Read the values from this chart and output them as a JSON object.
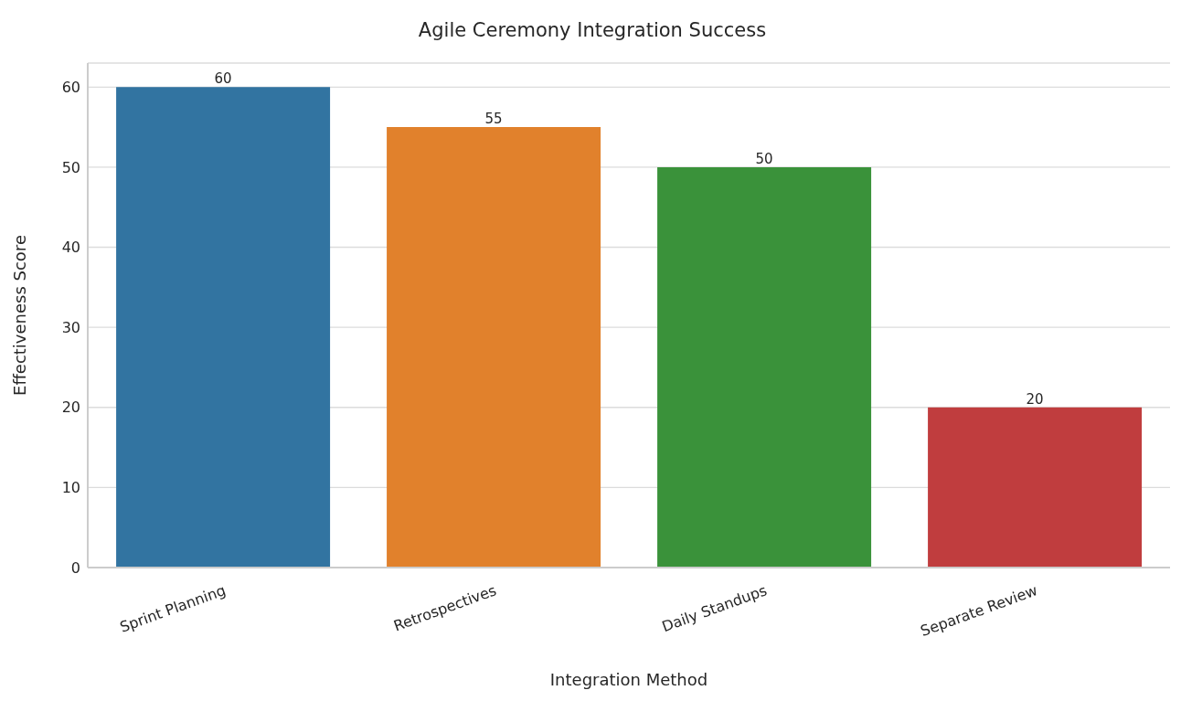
{
  "chart_data": {
    "type": "bar",
    "title": "Agile Ceremony Integration Success",
    "xlabel": "Integration Method",
    "ylabel": "Effectiveness Score",
    "categories": [
      "Sprint Planning",
      "Retrospectives",
      "Daily Standups",
      "Separate Review"
    ],
    "values": [
      60,
      55,
      50,
      20
    ],
    "colors": [
      "#3274a1",
      "#e1812c",
      "#3a923a",
      "#c03d3e"
    ],
    "ylim": [
      0,
      63
    ],
    "yticks": [
      0,
      10,
      20,
      30,
      40,
      50,
      60
    ],
    "grid": "y",
    "data_labels": true
  }
}
